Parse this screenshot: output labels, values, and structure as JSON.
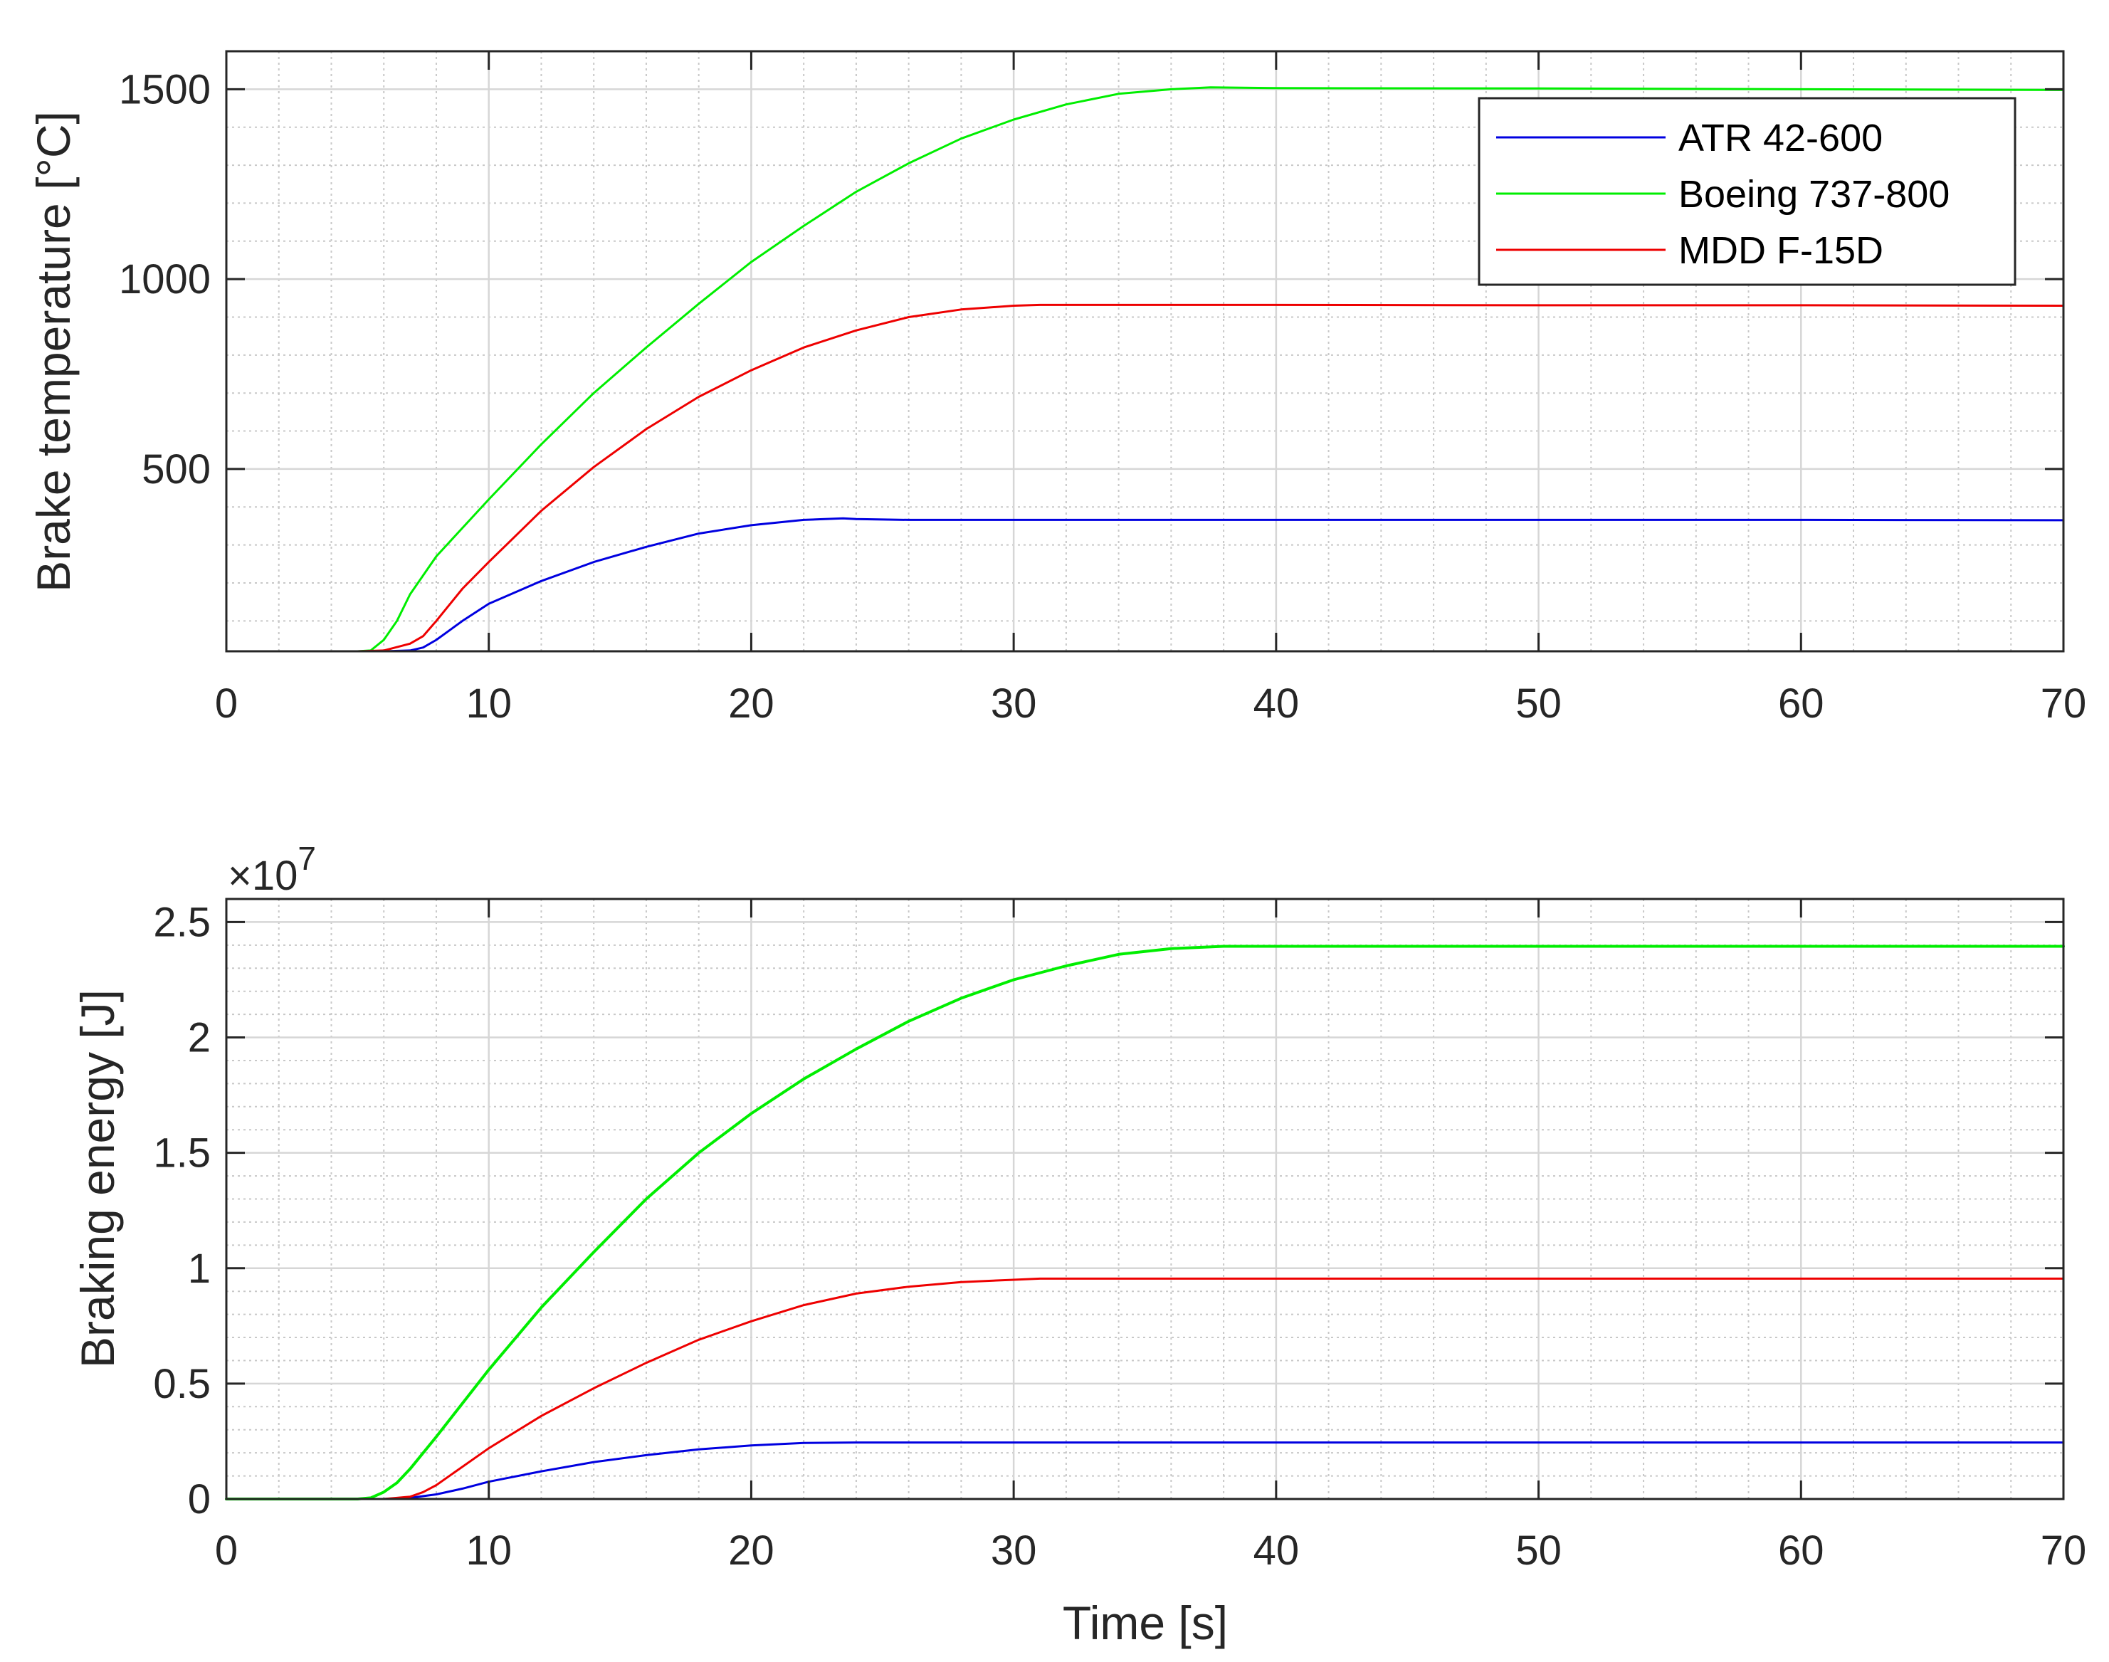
{
  "chart_data": [
    {
      "type": "line",
      "title": "",
      "xlabel": "",
      "ylabel": "Brake temperature [°C]",
      "xlim": [
        0,
        70
      ],
      "ylim": [
        20,
        1600
      ],
      "xticks": [
        0,
        10,
        20,
        30,
        40,
        50,
        60,
        70
      ],
      "xtick_labels": [
        "0",
        "10",
        "20",
        "30",
        "40",
        "50",
        "60",
        "70"
      ],
      "yticks": [
        500,
        1000,
        1500
      ],
      "ytick_labels": [
        "500",
        "1000",
        "1500"
      ],
      "grid": true,
      "minor_grid": true,
      "legend": {
        "position": "top-right",
        "entries": [
          "ATR 42-600",
          "Boeing 737-800",
          "MDD F-15D"
        ]
      },
      "series": [
        {
          "name": "ATR 42-600",
          "color": "#0000e0",
          "x": [
            0,
            5,
            6,
            7,
            7.5,
            8,
            9,
            10,
            12,
            14,
            16,
            18,
            20,
            22,
            23.5,
            24,
            26,
            30,
            40,
            50,
            60,
            70
          ],
          "y": [
            20,
            20,
            20,
            22,
            30,
            50,
            100,
            145,
            205,
            255,
            295,
            330,
            352,
            366,
            370,
            368,
            366,
            366,
            366,
            366,
            366,
            365
          ]
        },
        {
          "name": "Boeing 737-800",
          "color": "#00ee00",
          "x": [
            0,
            5,
            5.5,
            6,
            6.5,
            7,
            8,
            10,
            12,
            14,
            16,
            18,
            20,
            22,
            24,
            26,
            28,
            30,
            32,
            34,
            36,
            37.5,
            40,
            50,
            60,
            70
          ],
          "y": [
            20,
            20,
            22,
            50,
            100,
            170,
            270,
            420,
            565,
            700,
            820,
            935,
            1045,
            1140,
            1230,
            1305,
            1370,
            1420,
            1460,
            1488,
            1500,
            1505,
            1503,
            1502,
            1500,
            1498
          ],
          "line_width": 4
        },
        {
          "name": "MDD F-15D",
          "color": "#ee0000",
          "x": [
            0,
            5,
            6,
            7,
            7.5,
            8,
            9,
            10,
            12,
            14,
            16,
            18,
            20,
            22,
            24,
            26,
            28,
            30,
            31,
            40,
            50,
            60,
            70
          ],
          "y": [
            20,
            20,
            22,
            40,
            60,
            100,
            185,
            255,
            390,
            505,
            605,
            690,
            760,
            820,
            865,
            900,
            920,
            930,
            932,
            932,
            931,
            931,
            930
          ]
        }
      ]
    },
    {
      "type": "line",
      "title": "",
      "xlabel": "Time [s]",
      "ylabel": "Braking energy [J]",
      "y_exponent_label": "×10",
      "y_exponent": "7",
      "xlim": [
        0,
        70
      ],
      "ylim": [
        0,
        2.6
      ],
      "xticks": [
        0,
        10,
        20,
        30,
        40,
        50,
        60,
        70
      ],
      "xtick_labels": [
        "0",
        "10",
        "20",
        "30",
        "40",
        "50",
        "60",
        "70"
      ],
      "yticks": [
        0,
        0.5,
        1,
        1.5,
        2,
        2.5
      ],
      "ytick_labels": [
        "0",
        "0.5",
        "1",
        "1.5",
        "2",
        "2.5"
      ],
      "grid": true,
      "minor_grid": true,
      "series": [
        {
          "name": "ATR 42-600",
          "color": "#0000e0",
          "x": [
            0,
            6,
            7,
            8,
            9,
            10,
            12,
            14,
            16,
            18,
            20,
            22,
            24,
            30,
            40,
            50,
            60,
            70
          ],
          "y": [
            0,
            0,
            0.005,
            0.02,
            0.045,
            0.075,
            0.12,
            0.16,
            0.19,
            0.215,
            0.232,
            0.243,
            0.245,
            0.245,
            0.245,
            0.245,
            0.245,
            0.245
          ]
        },
        {
          "name": "Boeing 737-800",
          "color": "#00ee00",
          "x": [
            0,
            5,
            5.5,
            6,
            6.5,
            7,
            8,
            10,
            12,
            14,
            16,
            18,
            20,
            22,
            24,
            26,
            28,
            30,
            32,
            34,
            36,
            38,
            40,
            50,
            60,
            70
          ],
          "y": [
            0,
            0,
            0.005,
            0.03,
            0.07,
            0.13,
            0.27,
            0.56,
            0.83,
            1.07,
            1.3,
            1.5,
            1.67,
            1.82,
            1.95,
            2.07,
            2.17,
            2.25,
            2.31,
            2.36,
            2.385,
            2.395,
            2.395,
            2.395,
            2.395,
            2.395
          ]
        },
        {
          "name": "MDD F-15D",
          "color": "#ee0000",
          "x": [
            0,
            6,
            7,
            7.5,
            8,
            9,
            10,
            12,
            14,
            16,
            18,
            20,
            22,
            24,
            26,
            28,
            30,
            31,
            40,
            50,
            60,
            70
          ],
          "y": [
            0,
            0,
            0.01,
            0.03,
            0.06,
            0.14,
            0.22,
            0.36,
            0.48,
            0.59,
            0.69,
            0.77,
            0.84,
            0.89,
            0.92,
            0.94,
            0.95,
            0.955,
            0.955,
            0.955,
            0.955,
            0.955
          ]
        }
      ]
    }
  ]
}
